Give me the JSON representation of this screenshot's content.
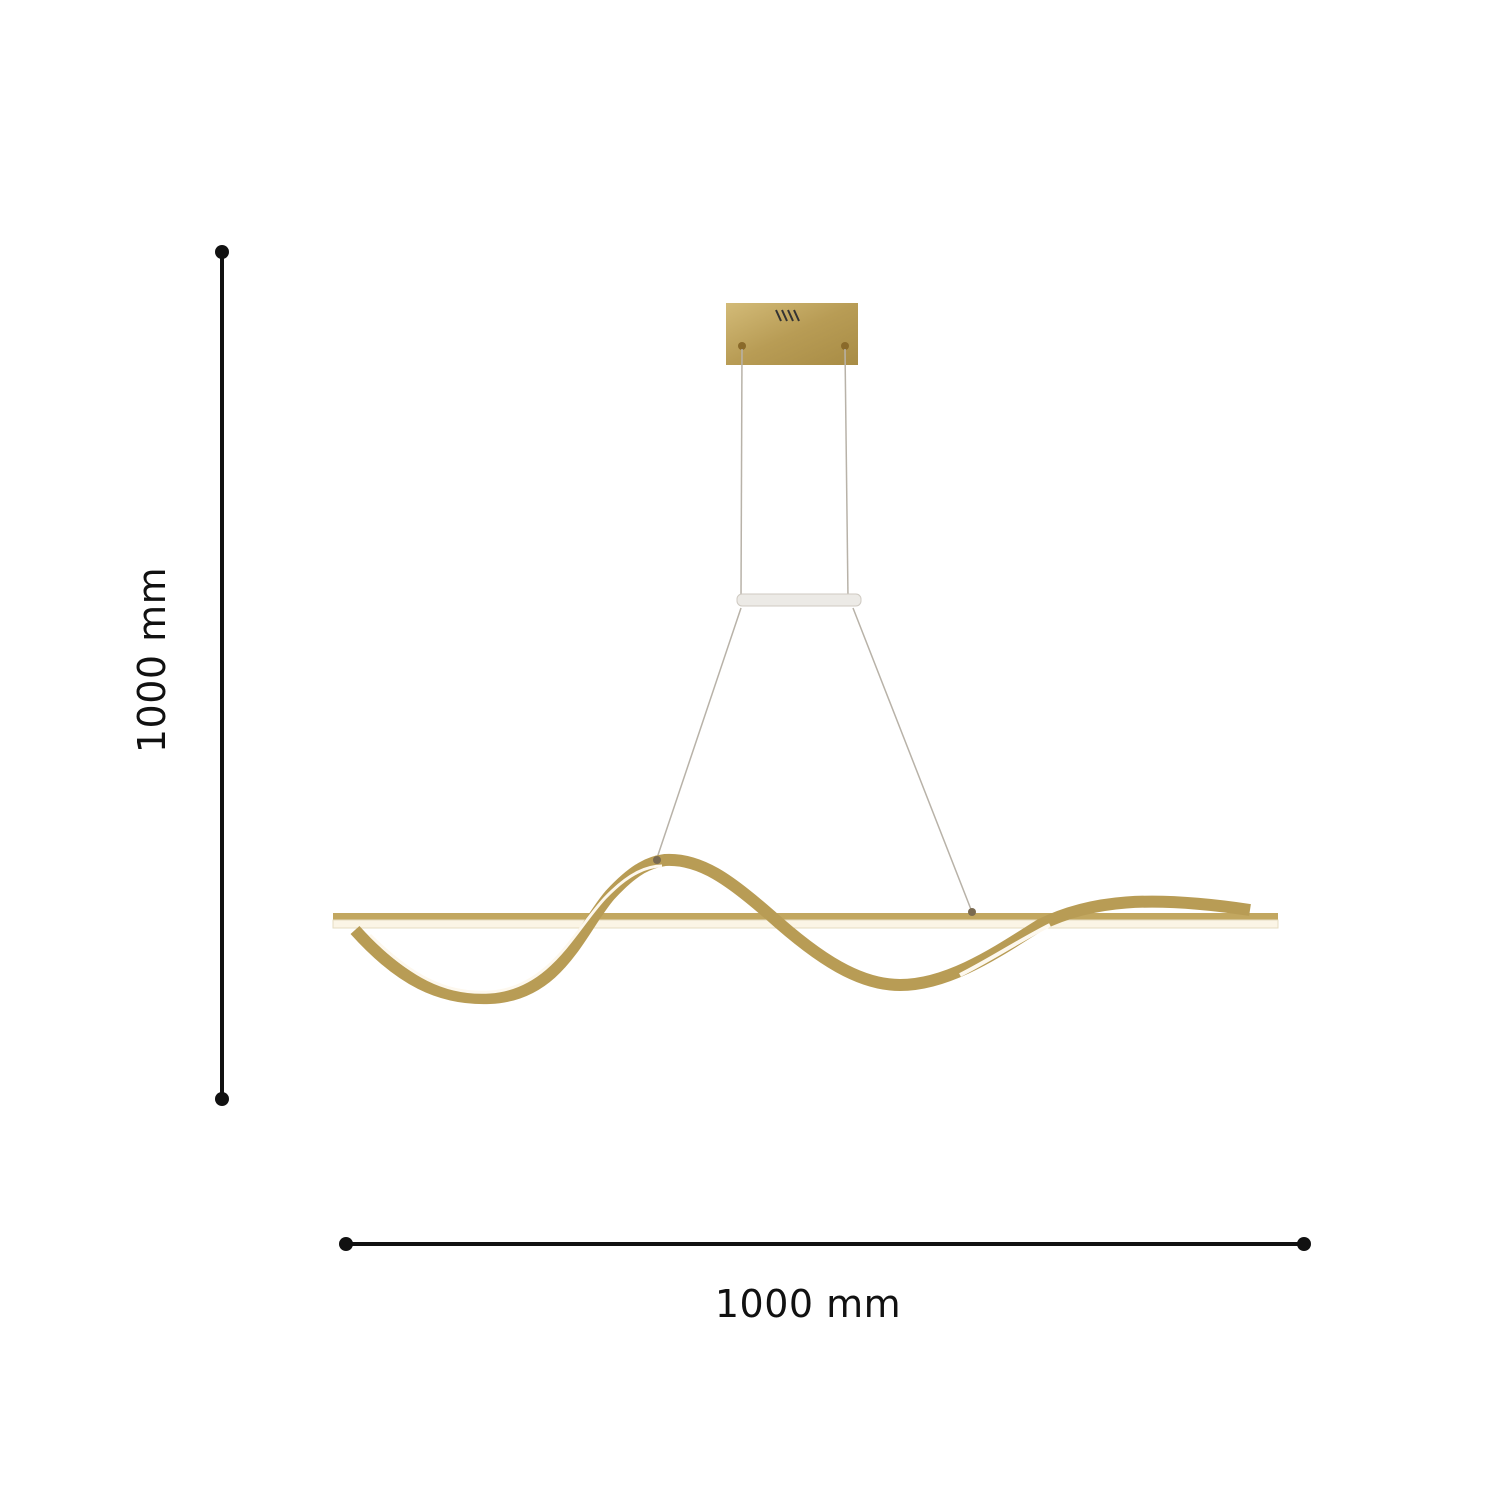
{
  "dimensions": {
    "height_label": "1000 mm",
    "width_label": "1000 mm"
  },
  "colors": {
    "gold": "#c2a760",
    "gold_dark": "#9c8240",
    "light": "#fdf8ee",
    "dimension_line": "#111111",
    "wire": "#b8b2a8"
  }
}
